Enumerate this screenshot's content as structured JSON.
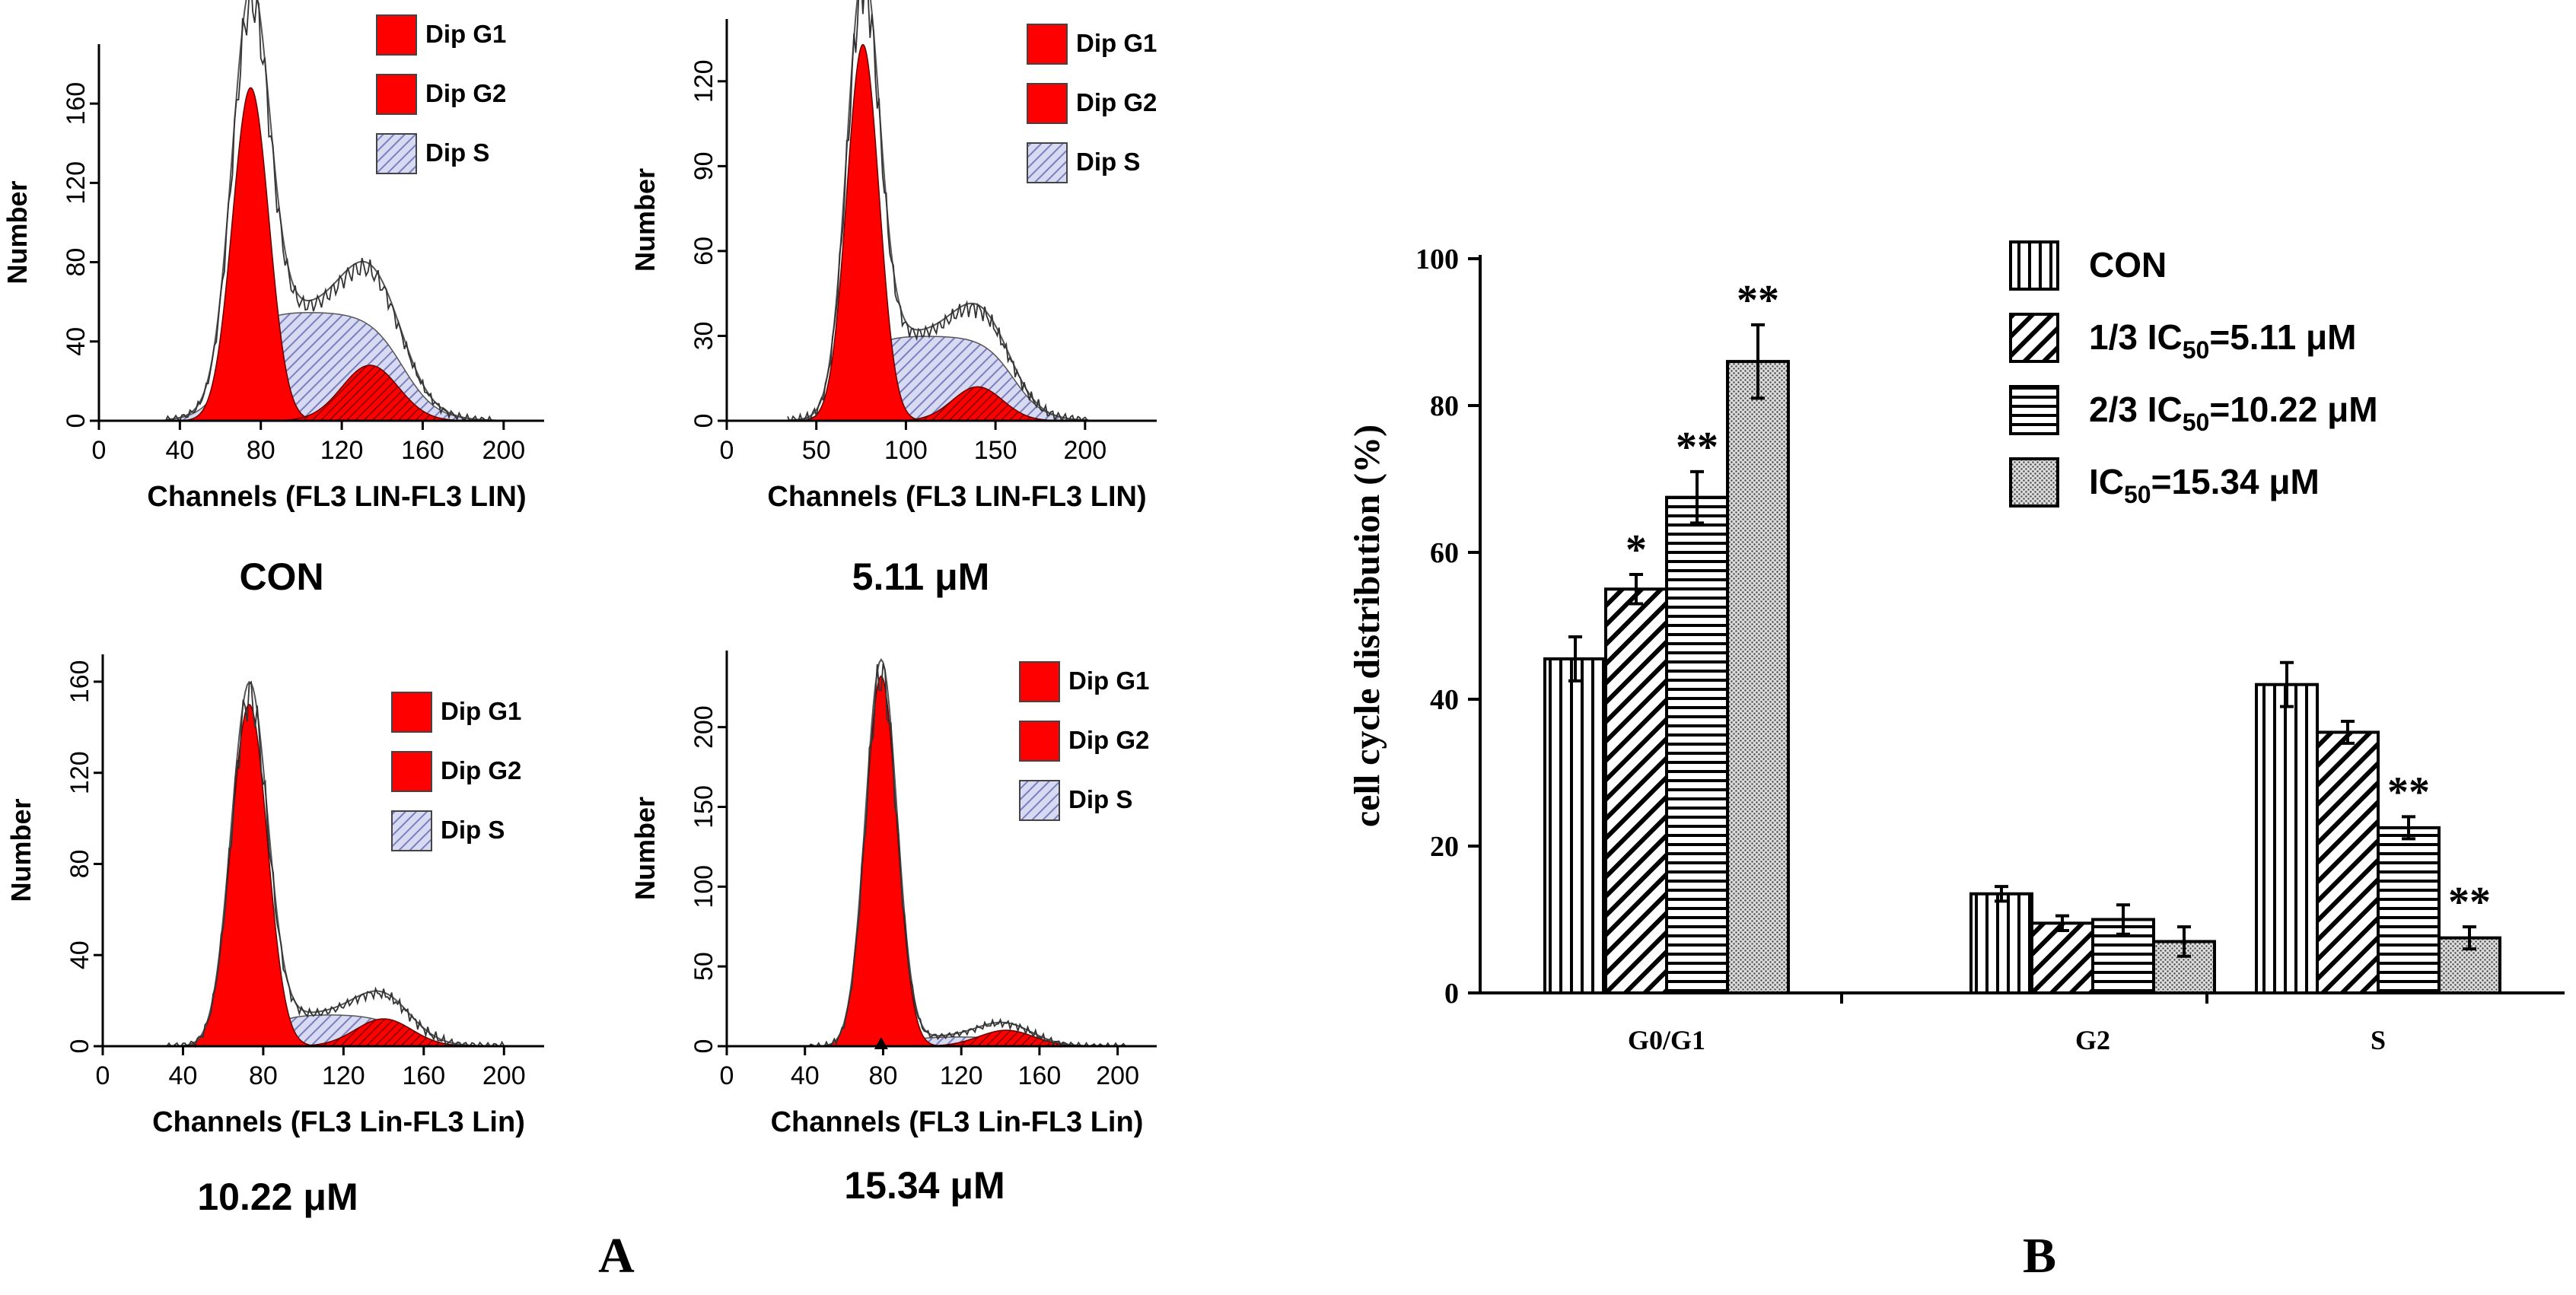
{
  "panel_a": {
    "label": "A",
    "histograms": [
      {
        "caption": "CON",
        "ylabel": "Number",
        "xlabel": "Channels (FL3 LIN-FL3 LIN)",
        "xticks": [
          0,
          40,
          80,
          120,
          160,
          200
        ],
        "yticks": [
          0,
          40,
          80,
          120,
          160
        ],
        "xmax": 220,
        "ymax": 190,
        "legend": [
          "Dip G1",
          "Dip G2",
          "Dip S"
        ],
        "g1": {
          "mu": 75,
          "sigma": 9,
          "amp": 168
        },
        "g2": {
          "mu": 134,
          "sigma": 14,
          "amp": 28
        },
        "s": {
          "from": 65,
          "to": 150,
          "plateau": 55
        },
        "marker": false
      },
      {
        "caption": "5.11 μM",
        "ylabel": "Number",
        "xlabel": "Channels (FL3 LIN-FL3 LIN)",
        "xticks": [
          0,
          50,
          100,
          150,
          200
        ],
        "yticks": [
          0,
          30,
          60,
          90,
          120
        ],
        "xmax": 240,
        "ymax": 142,
        "legend": [
          "Dip G1",
          "Dip G2",
          "Dip S"
        ],
        "g1": {
          "mu": 76,
          "sigma": 9,
          "amp": 133
        },
        "g2": {
          "mu": 140,
          "sigma": 14,
          "amp": 12
        },
        "s": {
          "from": 70,
          "to": 160,
          "plateau": 30
        },
        "marker": false
      },
      {
        "caption": "10.22 μM",
        "ylabel": "Number",
        "xlabel": "Channels (FL3 Lin-FL3 Lin)",
        "xticks": [
          0,
          40,
          80,
          120,
          160,
          200
        ],
        "yticks": [
          0,
          40,
          80,
          120,
          160
        ],
        "xmax": 220,
        "ymax": 172,
        "legend": [
          "Dip G1",
          "Dip G2",
          "Dip S"
        ],
        "g1": {
          "mu": 73,
          "sigma": 9,
          "amp": 150
        },
        "g2": {
          "mu": 140,
          "sigma": 14,
          "amp": 12
        },
        "s": {
          "from": 80,
          "to": 150,
          "plateau": 14
        },
        "marker": false
      },
      {
        "caption": "15.34 μM",
        "ylabel": "Number",
        "xlabel": "Channels (FL3 Lin-FL3 Lin)",
        "xticks": [
          0,
          40,
          80,
          120,
          160,
          200
        ],
        "yticks": [
          0,
          50,
          100,
          150,
          200
        ],
        "xmax": 220,
        "ymax": 248,
        "legend": [
          "Dip G1",
          "Dip G2",
          "Dip S"
        ],
        "g1": {
          "mu": 79,
          "sigma": 8,
          "amp": 232
        },
        "g2": {
          "mu": 143,
          "sigma": 14,
          "amp": 10
        },
        "s": {
          "from": 90,
          "to": 150,
          "plateau": 6
        },
        "marker": true
      }
    ]
  },
  "panel_b": {
    "label": "B"
  },
  "chart_data": {
    "type": "bar",
    "title": "",
    "xlabel": "",
    "ylabel": "cell cycle distribution (%)",
    "categories": [
      "G0/G1",
      "G2",
      "S"
    ],
    "ylim": [
      0,
      100
    ],
    "yticks": [
      0,
      20,
      40,
      60,
      80,
      100
    ],
    "series": [
      {
        "name": "CON",
        "values": [
          45.5,
          13.5,
          42
        ],
        "errors": [
          3,
          1,
          3
        ],
        "stars": [
          "",
          "",
          ""
        ],
        "pattern": "vertical"
      },
      {
        "name": "1/3 IC50=5.11 μM",
        "values": [
          55,
          9.5,
          35.5
        ],
        "errors": [
          2,
          1,
          1.5
        ],
        "stars": [
          "*",
          "",
          ""
        ],
        "pattern": "diagonal"
      },
      {
        "name": "2/3 IC50=10.22 μM",
        "values": [
          67.5,
          10,
          22.5
        ],
        "errors": [
          3.5,
          2,
          1.5
        ],
        "stars": [
          "**",
          "",
          "**"
        ],
        "pattern": "horizontal"
      },
      {
        "name": "IC50=15.34 μM",
        "values": [
          86,
          7,
          7.5
        ],
        "errors": [
          5,
          2,
          1.5
        ],
        "stars": [
          "**",
          "",
          "**"
        ],
        "pattern": "dotted"
      }
    ],
    "legend": [
      {
        "prefix": "CON",
        "sub": "",
        "suffix": ""
      },
      {
        "prefix": "1/3 IC",
        "sub": "50",
        "suffix": "=5.11 μM"
      },
      {
        "prefix": "2/3 IC",
        "sub": "50",
        "suffix": "=10.22 μM"
      },
      {
        "prefix": "IC",
        "sub": "50",
        "suffix": "=15.34 μM"
      }
    ],
    "legend_position": "top-right",
    "colors": {
      "g1": "#ff0000",
      "g2": "#ff0000",
      "s_fill": "#d8daf2",
      "s_hatch": "#7a7fc0",
      "axis": "#000000",
      "envelope": "#666666"
    }
  }
}
